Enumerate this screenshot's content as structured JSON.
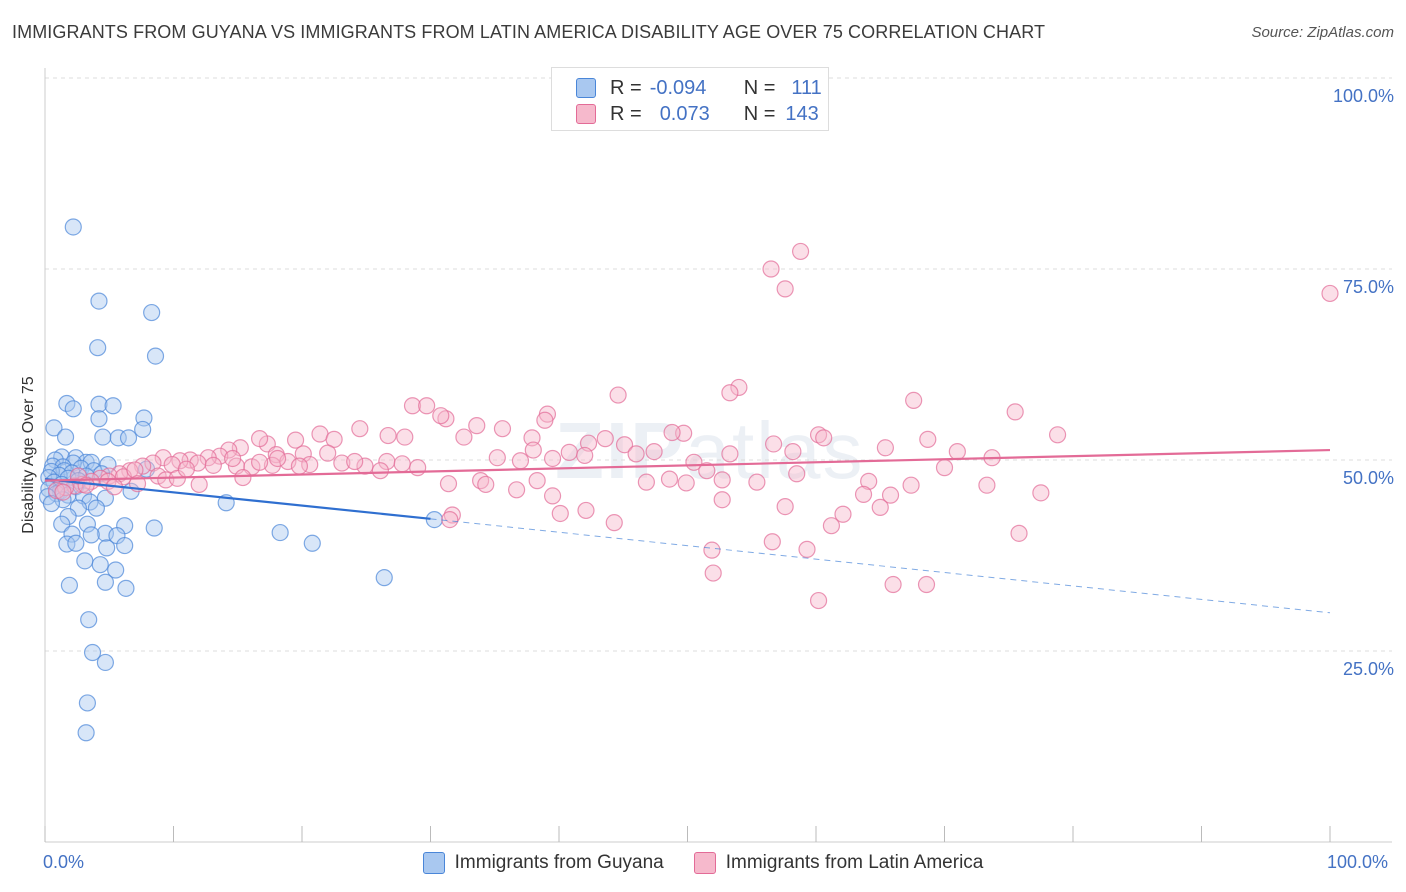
{
  "title": "IMMIGRANTS FROM GUYANA VS IMMIGRANTS FROM LATIN AMERICA DISABILITY AGE OVER 75 CORRELATION CHART",
  "source": "Source: ZipAtlas.com",
  "watermark": {
    "zip": "ZIP",
    "atlas": "atlas"
  },
  "colors": {
    "blue": "#4a86d8",
    "blue_fill": "#a9c8f0",
    "pink": "#e36b97",
    "pink_fill": "#f6b9cc",
    "tick_text": "#4472c4"
  },
  "legend": {
    "row1": {
      "r_label": "R =",
      "r_value": "-0.094",
      "n_label": "N =",
      "n_value": "111"
    },
    "row2": {
      "r_label": "R =",
      "r_value": "0.073",
      "n_label": "N =",
      "n_value": "143"
    }
  },
  "chart_data": {
    "type": "scatter",
    "ylabel": "Disability Age Over 75",
    "xlim": [
      0,
      100
    ],
    "ylim": [
      0,
      100
    ],
    "x_tick_labels": [
      "0.0%",
      "100.0%"
    ],
    "y_ticks": [
      {
        "value": 100,
        "label": "100.0%"
      },
      {
        "value": 75,
        "label": "75.0%"
      },
      {
        "value": 50,
        "label": "50.0%"
      },
      {
        "value": 25,
        "label": "25.0%"
      }
    ],
    "series": [
      {
        "name": "Immigrants from Guyana",
        "color": "#4a86d8",
        "trend": {
          "x0": 0,
          "y0": 47.5,
          "x1": 30,
          "y1": 42.3,
          "dash_to_x": 100,
          "dash_to_y": 30.0
        },
        "points": [
          [
            2.2,
            80.5
          ],
          [
            4.2,
            70.8
          ],
          [
            8.3,
            69.3
          ],
          [
            4.1,
            64.7
          ],
          [
            8.6,
            63.6
          ],
          [
            1.7,
            57.4
          ],
          [
            4.2,
            57.3
          ],
          [
            5.3,
            57.1
          ],
          [
            2.2,
            56.7
          ],
          [
            7.7,
            55.5
          ],
          [
            4.2,
            55.4
          ],
          [
            0.7,
            54.2
          ],
          [
            7.6,
            54.0
          ],
          [
            1.6,
            53.0
          ],
          [
            4.5,
            53.0
          ],
          [
            5.7,
            52.9
          ],
          [
            6.5,
            52.9
          ],
          [
            1.3,
            50.4
          ],
          [
            2.4,
            50.3
          ],
          [
            0.8,
            50.0
          ],
          [
            3.2,
            49.7
          ],
          [
            3.6,
            49.7
          ],
          [
            2.2,
            49.6
          ],
          [
            4.9,
            49.4
          ],
          [
            0.6,
            49.2
          ],
          [
            1.4,
            49.1
          ],
          [
            2.8,
            48.9
          ],
          [
            7.9,
            48.8
          ],
          [
            1.5,
            48.6
          ],
          [
            3.8,
            48.6
          ],
          [
            0.5,
            48.5
          ],
          [
            2.1,
            48.3
          ],
          [
            4.4,
            48.2
          ],
          [
            1.1,
            48.0
          ],
          [
            3.2,
            47.9
          ],
          [
            0.3,
            47.7
          ],
          [
            1.8,
            47.6
          ],
          [
            2.6,
            47.3
          ],
          [
            0.7,
            47.1
          ],
          [
            1.3,
            46.8
          ],
          [
            2.4,
            46.5
          ],
          [
            0.3,
            46.2
          ],
          [
            1.2,
            45.9
          ],
          [
            6.7,
            45.9
          ],
          [
            0.9,
            45.6
          ],
          [
            1.8,
            45.4
          ],
          [
            3.0,
            45.3
          ],
          [
            0.2,
            45.2
          ],
          [
            4.7,
            45.0
          ],
          [
            1.4,
            44.8
          ],
          [
            3.5,
            44.5
          ],
          [
            0.5,
            44.3
          ],
          [
            2.6,
            43.7
          ],
          [
            14.1,
            44.4
          ],
          [
            4.0,
            43.7
          ],
          [
            1.8,
            42.6
          ],
          [
            1.3,
            41.6
          ],
          [
            3.3,
            41.6
          ],
          [
            6.2,
            41.4
          ],
          [
            8.5,
            41.1
          ],
          [
            30.3,
            42.2
          ],
          [
            4.7,
            40.4
          ],
          [
            2.1,
            40.3
          ],
          [
            3.6,
            40.2
          ],
          [
            5.6,
            40.1
          ],
          [
            18.3,
            40.5
          ],
          [
            1.7,
            39.0
          ],
          [
            2.4,
            39.1
          ],
          [
            20.8,
            39.1
          ],
          [
            6.2,
            38.8
          ],
          [
            4.8,
            38.5
          ],
          [
            3.1,
            36.8
          ],
          [
            4.3,
            36.3
          ],
          [
            5.5,
            35.6
          ],
          [
            26.4,
            34.6
          ],
          [
            4.7,
            34.0
          ],
          [
            1.9,
            33.6
          ],
          [
            6.3,
            33.2
          ],
          [
            3.4,
            29.1
          ],
          [
            3.7,
            24.8
          ],
          [
            4.7,
            23.5
          ],
          [
            3.3,
            18.2
          ],
          [
            3.2,
            14.3
          ]
        ]
      },
      {
        "name": "Immigrants from Latin America",
        "color": "#e36b97",
        "trend": {
          "x0": 0,
          "y0": 47.3,
          "x1": 100,
          "y1": 51.3
        },
        "points": [
          [
            56.5,
            75.0
          ],
          [
            58.8,
            77.3
          ],
          [
            57.6,
            72.4
          ],
          [
            100,
            71.8
          ],
          [
            44.6,
            58.5
          ],
          [
            54.0,
            59.5
          ],
          [
            53.3,
            58.8
          ],
          [
            67.6,
            57.8
          ],
          [
            75.5,
            56.3
          ],
          [
            28.6,
            57.1
          ],
          [
            29.7,
            57.1
          ],
          [
            39.1,
            56.0
          ],
          [
            31.2,
            55.4
          ],
          [
            38.9,
            55.2
          ],
          [
            49.7,
            53.5
          ],
          [
            56.7,
            52.1
          ],
          [
            60.2,
            53.3
          ],
          [
            78.8,
            53.3
          ],
          [
            28.0,
            53.0
          ],
          [
            32.6,
            53.0
          ],
          [
            37.9,
            52.9
          ],
          [
            48.8,
            53.6
          ],
          [
            43.6,
            52.8
          ],
          [
            42.3,
            52.2
          ],
          [
            33.6,
            54.5
          ],
          [
            35.6,
            54.1
          ],
          [
            30.8,
            55.8
          ],
          [
            38.0,
            51.3
          ],
          [
            40.8,
            51.0
          ],
          [
            45.1,
            52.0
          ],
          [
            47.4,
            51.1
          ],
          [
            53.3,
            50.8
          ],
          [
            58.2,
            51.1
          ],
          [
            60.6,
            52.9
          ],
          [
            65.4,
            51.6
          ],
          [
            68.7,
            52.7
          ],
          [
            71.0,
            51.1
          ],
          [
            73.7,
            50.3
          ],
          [
            24.5,
            54.1
          ],
          [
            26.7,
            53.2
          ],
          [
            21.4,
            53.4
          ],
          [
            19.5,
            52.6
          ],
          [
            17.3,
            52.1
          ],
          [
            16.7,
            52.8
          ],
          [
            22.5,
            52.7
          ],
          [
            20.1,
            50.8
          ],
          [
            18.0,
            50.7
          ],
          [
            15.2,
            51.6
          ],
          [
            14.3,
            51.3
          ],
          [
            13.6,
            50.5
          ],
          [
            12.7,
            50.3
          ],
          [
            11.3,
            50.0
          ],
          [
            10.5,
            49.9
          ],
          [
            9.2,
            50.3
          ],
          [
            8.4,
            49.6
          ],
          [
            7.6,
            49.2
          ],
          [
            6.6,
            48.6
          ],
          [
            5.8,
            48.2
          ],
          [
            5.0,
            47.9
          ],
          [
            4.3,
            47.6
          ],
          [
            3.6,
            47.2
          ],
          [
            2.9,
            46.8
          ],
          [
            2.3,
            46.6
          ],
          [
            1.6,
            46.4
          ],
          [
            0.9,
            46.0
          ],
          [
            6.1,
            47.8
          ],
          [
            7.0,
            48.7
          ],
          [
            8.8,
            47.9
          ],
          [
            9.9,
            49.4
          ],
          [
            11.9,
            49.6
          ],
          [
            13.1,
            49.3
          ],
          [
            14.9,
            49.2
          ],
          [
            16.1,
            49.1
          ],
          [
            17.7,
            49.3
          ],
          [
            18.9,
            49.8
          ],
          [
            20.6,
            49.4
          ],
          [
            23.1,
            49.6
          ],
          [
            24.9,
            49.2
          ],
          [
            26.6,
            49.8
          ],
          [
            29.0,
            49.0
          ],
          [
            35.2,
            50.3
          ],
          [
            37.0,
            49.9
          ],
          [
            39.5,
            50.2
          ],
          [
            42.0,
            50.6
          ],
          [
            46.0,
            50.8
          ],
          [
            50.5,
            49.7
          ],
          [
            52.7,
            47.4
          ],
          [
            31.4,
            46.9
          ],
          [
            33.9,
            47.3
          ],
          [
            34.3,
            46.8
          ],
          [
            36.7,
            46.1
          ],
          [
            38.3,
            47.3
          ],
          [
            39.5,
            45.3
          ],
          [
            46.8,
            47.1
          ],
          [
            48.6,
            47.5
          ],
          [
            49.9,
            47.0
          ],
          [
            51.5,
            48.6
          ],
          [
            55.4,
            47.1
          ],
          [
            58.5,
            48.2
          ],
          [
            64.1,
            47.2
          ],
          [
            65.8,
            45.4
          ],
          [
            67.4,
            46.7
          ],
          [
            70.0,
            49.0
          ],
          [
            73.3,
            46.7
          ],
          [
            77.5,
            45.7
          ],
          [
            63.7,
            45.5
          ],
          [
            52.7,
            44.8
          ],
          [
            42.1,
            43.4
          ],
          [
            44.3,
            41.8
          ],
          [
            57.6,
            43.9
          ],
          [
            62.1,
            42.9
          ],
          [
            65.0,
            43.8
          ],
          [
            40.1,
            43.0
          ],
          [
            31.7,
            42.8
          ],
          [
            61.2,
            41.4
          ],
          [
            51.9,
            38.2
          ],
          [
            56.6,
            39.3
          ],
          [
            59.3,
            38.3
          ],
          [
            66.0,
            33.7
          ],
          [
            68.6,
            33.7
          ],
          [
            52.0,
            35.2
          ],
          [
            60.2,
            31.6
          ],
          [
            75.8,
            40.4
          ],
          [
            31.5,
            42.2
          ],
          [
            1.4,
            45.8
          ],
          [
            2.6,
            47.9
          ],
          [
            4.9,
            47.2
          ],
          [
            3.2,
            46.7
          ],
          [
            9.4,
            47.4
          ],
          [
            12.0,
            46.8
          ],
          [
            15.4,
            47.7
          ],
          [
            7.2,
            46.9
          ],
          [
            5.4,
            46.5
          ],
          [
            10.3,
            47.6
          ],
          [
            18.1,
            50.2
          ],
          [
            22.0,
            50.9
          ],
          [
            24.1,
            49.8
          ],
          [
            26.1,
            48.6
          ],
          [
            27.8,
            49.5
          ],
          [
            14.6,
            50.2
          ],
          [
            19.8,
            49.2
          ],
          [
            11.0,
            48.8
          ],
          [
            16.7,
            49.7
          ]
        ]
      }
    ]
  },
  "bottom_legend": {
    "item1": "Immigrants from Guyana",
    "item2": "Immigrants from Latin America"
  }
}
